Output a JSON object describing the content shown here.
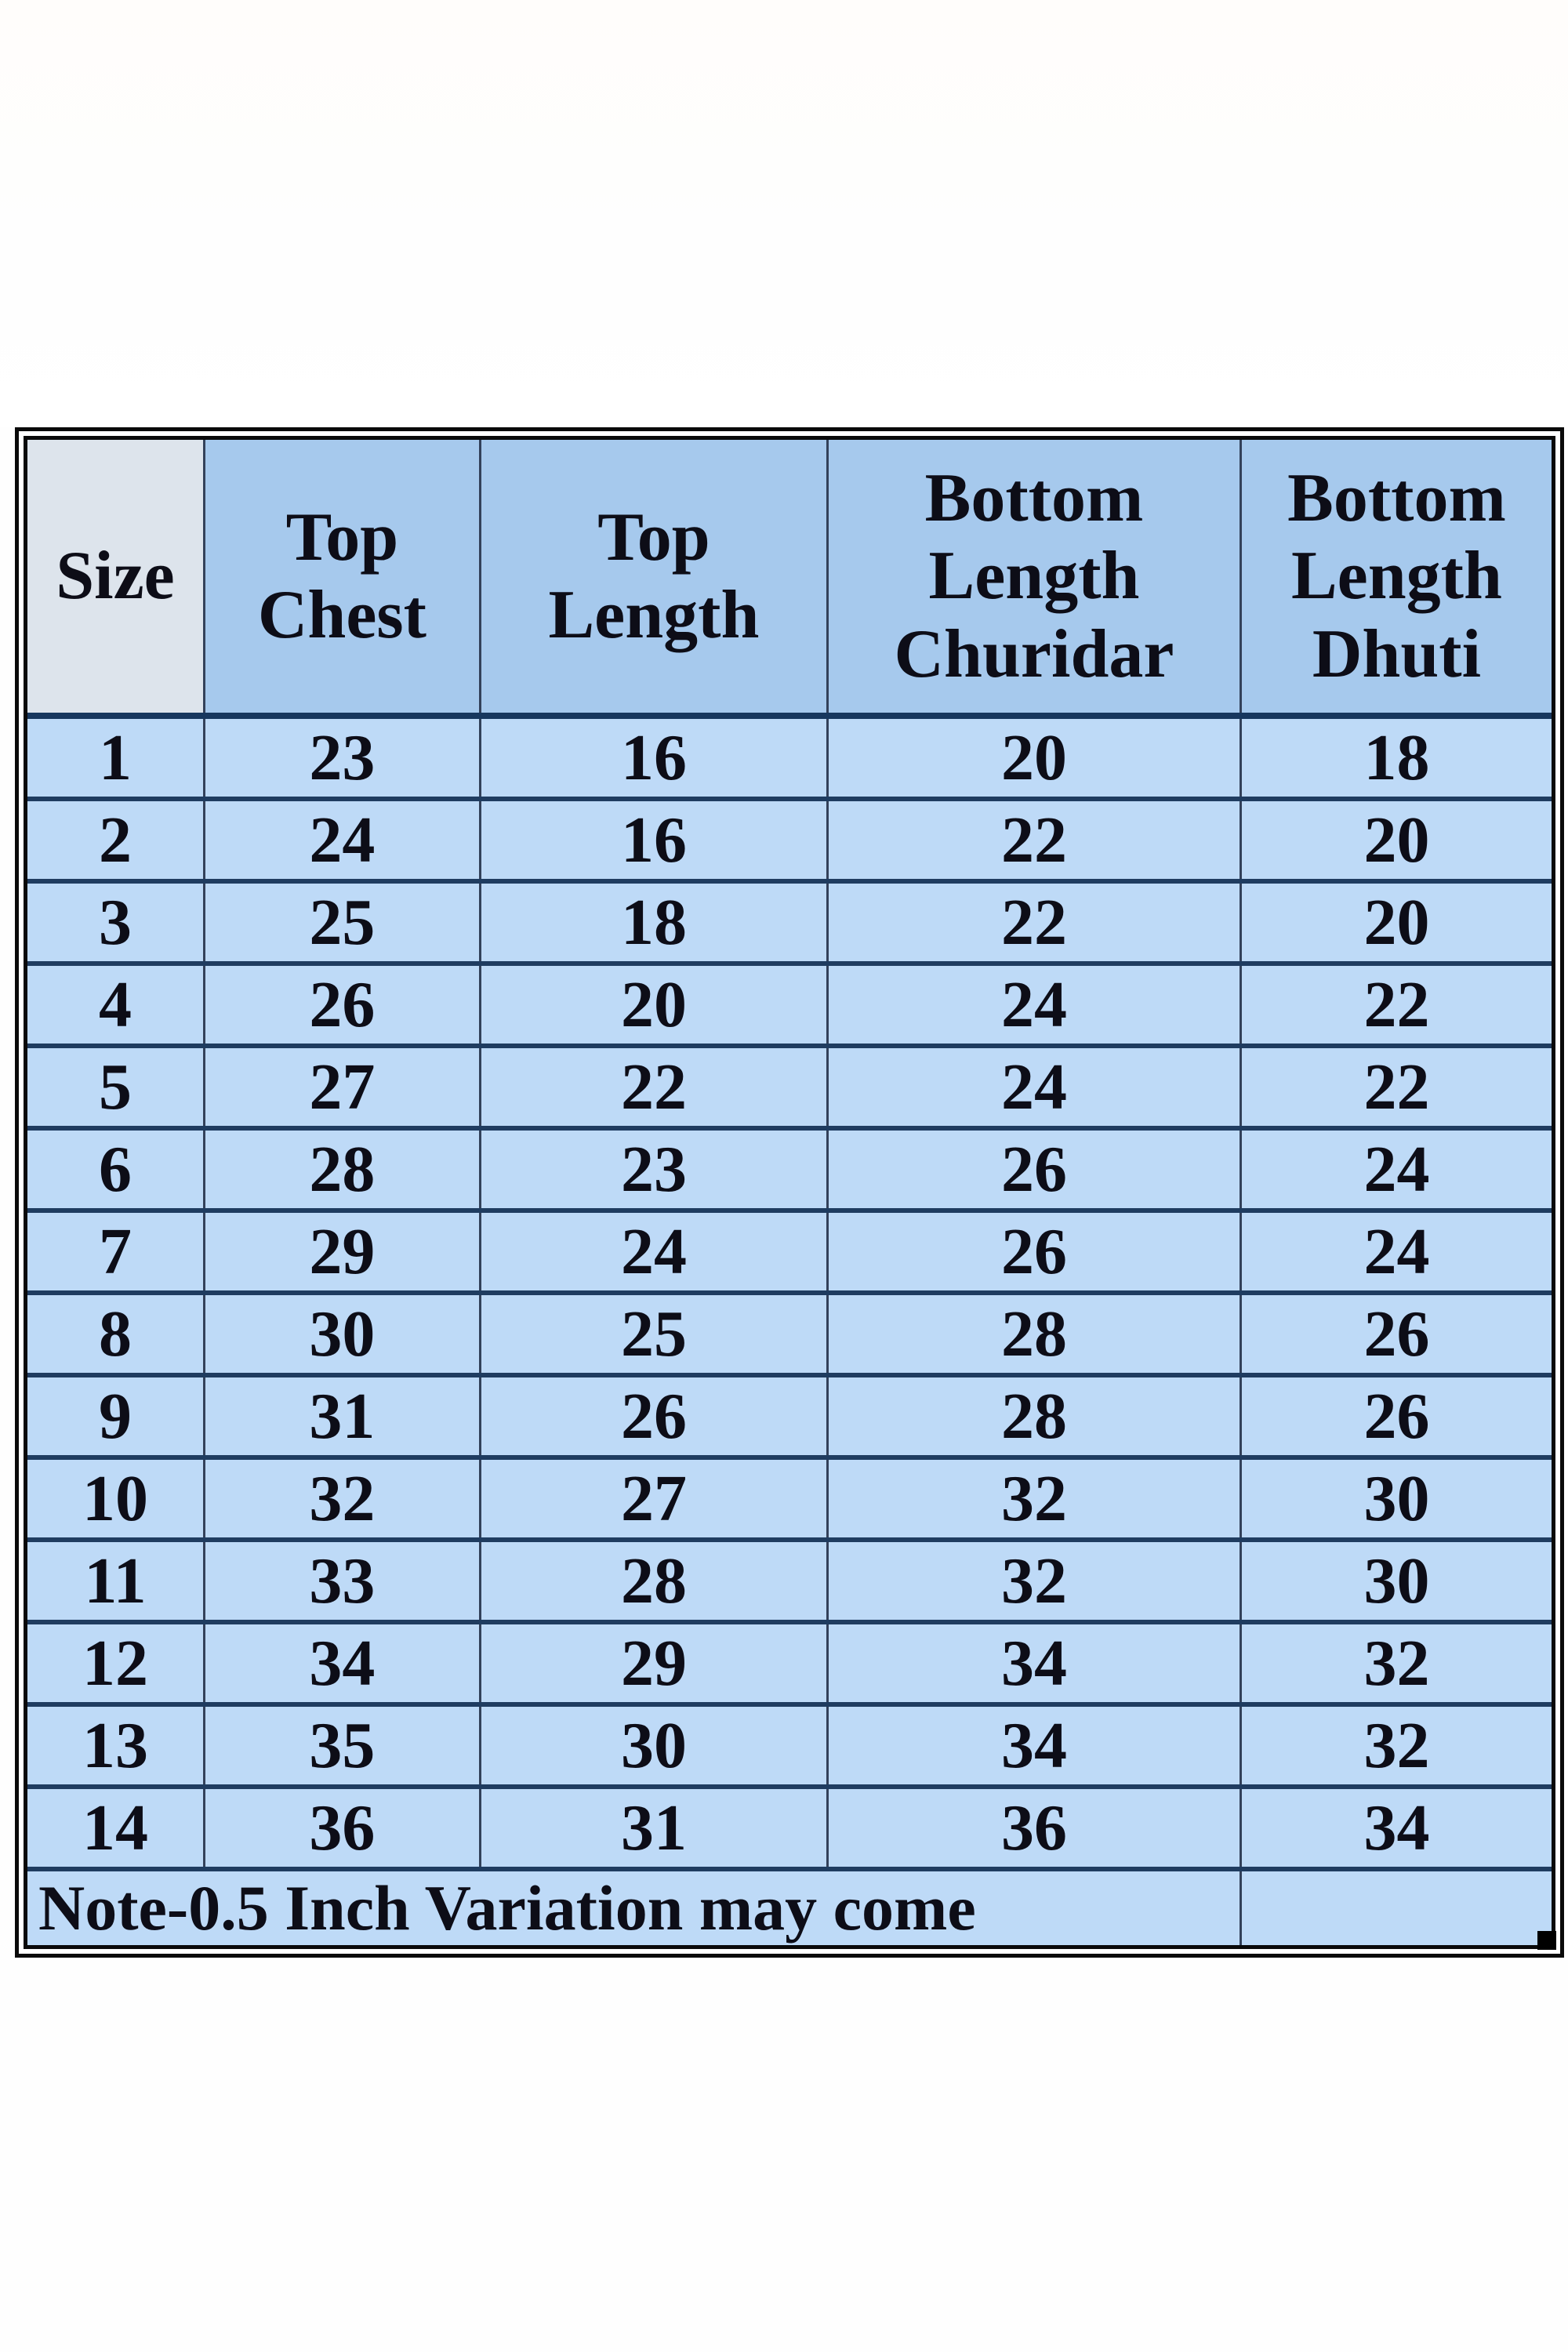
{
  "colors": {
    "header_bg": "#a6c9ed",
    "size_header_bg": "#dde4ec",
    "row_bg": "#bedaf7",
    "grid_line_horizontal": "#1f3c60",
    "grid_line_vertical": "#33415a",
    "outer_border": "#0a0a0a",
    "text": "#0d0d17",
    "page_bg": "#fefefe"
  },
  "chart_data": {
    "type": "table",
    "columns": [
      "Size",
      "Top Chest",
      "Top Length",
      "Bottom Length Churidar",
      "Bottom Length Dhuti"
    ],
    "rows": [
      [
        "1",
        "23",
        "16",
        "20",
        "18"
      ],
      [
        "2",
        "24",
        "16",
        "22",
        "20"
      ],
      [
        "3",
        "25",
        "18",
        "22",
        "20"
      ],
      [
        "4",
        "26",
        "20",
        "24",
        "22"
      ],
      [
        "5",
        "27",
        "22",
        "24",
        "22"
      ],
      [
        "6",
        "28",
        "23",
        "26",
        "24"
      ],
      [
        "7",
        "29",
        "24",
        "26",
        "24"
      ],
      [
        "8",
        "30",
        "25",
        "28",
        "26"
      ],
      [
        "9",
        "31",
        "26",
        "28",
        "26"
      ],
      [
        "10",
        "32",
        "27",
        "32",
        "30"
      ],
      [
        "11",
        "33",
        "28",
        "32",
        "30"
      ],
      [
        "12",
        "34",
        "29",
        "34",
        "32"
      ],
      [
        "13",
        "35",
        "30",
        "34",
        "32"
      ],
      [
        "14",
        "36",
        "31",
        "36",
        "34"
      ]
    ],
    "note": "Note-0.5 Inch Variation may come",
    "layout_hints": {
      "note_row_spans_columns": 4,
      "last_note_column_empty": true,
      "header_words_stacked": true
    }
  }
}
